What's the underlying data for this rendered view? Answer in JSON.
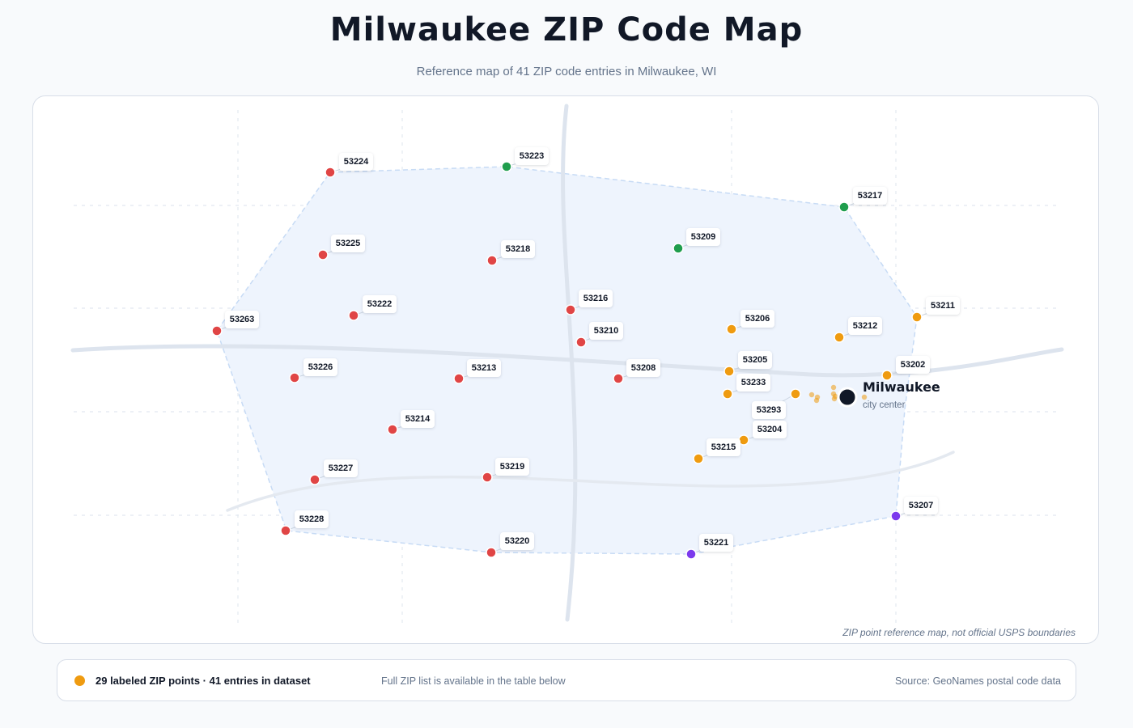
{
  "header": {
    "title": "Milwaukee ZIP Code Map",
    "subtitle": "Reference map of 41 ZIP code entries in Milwaukee, WI"
  },
  "map": {
    "note": "ZIP point reference map, not official USPS boundaries",
    "city_name": "Milwaukee",
    "city_caption": "city center",
    "colors": {
      "red": "#e04545",
      "orange": "#ef9b10",
      "green": "#1f9d4d",
      "purple": "#7c3aed",
      "area_fill": "#eef4fd",
      "area_stroke": "#c7dbf5",
      "road": "#dde4ee",
      "grid": "#e2e8f0",
      "city_center": "#111827"
    },
    "zips": [
      {
        "zip": "53224",
        "color": "red",
        "label": true
      },
      {
        "zip": "53223",
        "color": "green",
        "label": true
      },
      {
        "zip": "53217",
        "color": "green",
        "label": true
      },
      {
        "zip": "53225",
        "color": "red",
        "label": true
      },
      {
        "zip": "53218",
        "color": "red",
        "label": true
      },
      {
        "zip": "53209",
        "color": "green",
        "label": true
      },
      {
        "zip": "53216",
        "color": "red",
        "label": true
      },
      {
        "zip": "53222",
        "color": "red",
        "label": true
      },
      {
        "zip": "53263",
        "color": "red",
        "label": true
      },
      {
        "zip": "53211",
        "color": "orange",
        "label": true
      },
      {
        "zip": "53206",
        "color": "orange",
        "label": true
      },
      {
        "zip": "53212",
        "color": "orange",
        "label": true
      },
      {
        "zip": "53210",
        "color": "red",
        "label": true
      },
      {
        "zip": "53205",
        "color": "orange",
        "label": true
      },
      {
        "zip": "53202",
        "color": "orange",
        "label": true
      },
      {
        "zip": "53226",
        "color": "red",
        "label": true
      },
      {
        "zip": "53213",
        "color": "red",
        "label": true
      },
      {
        "zip": "53208",
        "color": "red",
        "label": true
      },
      {
        "zip": "53233",
        "color": "orange",
        "label": true
      },
      {
        "zip": "53293",
        "color": "orange",
        "label": true
      },
      {
        "zip": "53214",
        "color": "red",
        "label": true
      },
      {
        "zip": "53204",
        "color": "orange",
        "label": true
      },
      {
        "zip": "53215",
        "color": "orange",
        "label": true
      },
      {
        "zip": "53227",
        "color": "red",
        "label": true
      },
      {
        "zip": "53219",
        "color": "red",
        "label": true
      },
      {
        "zip": "53207",
        "color": "purple",
        "label": true
      },
      {
        "zip": "53228",
        "color": "red",
        "label": true
      },
      {
        "zip": "53220",
        "color": "red",
        "label": true
      },
      {
        "zip": "53221",
        "color": "purple",
        "label": true
      },
      {
        "zip": "",
        "color": "orange",
        "label": false
      },
      {
        "zip": "",
        "color": "orange",
        "label": false
      },
      {
        "zip": "",
        "color": "orange",
        "label": false
      },
      {
        "zip": "",
        "color": "orange",
        "label": false
      },
      {
        "zip": "",
        "color": "orange",
        "label": false
      },
      {
        "zip": "",
        "color": "orange",
        "label": false
      },
      {
        "zip": "",
        "color": "orange",
        "label": false
      },
      {
        "zip": "",
        "color": "orange",
        "label": false
      }
    ]
  },
  "footer": {
    "legend_text": "29 labeled ZIP points · 41 entries in dataset",
    "legend_color": "#ef9b10",
    "table_note": "Full ZIP list is available in the table below",
    "source": "Source: GeoNames postal code data"
  }
}
